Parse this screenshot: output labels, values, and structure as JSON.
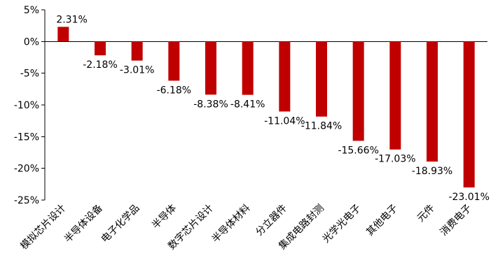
{
  "chart_data": {
    "type": "bar",
    "categories": [
      "模拟芯片设计",
      "半导体设备",
      "电子化学品",
      "半导体",
      "数字芯片设计",
      "半导体材料",
      "分立器件",
      "集成电路封测",
      "光学光电子",
      "其他电子",
      "元件",
      "消费电子"
    ],
    "values": [
      2.31,
      -2.18,
      -3.01,
      -6.18,
      -8.38,
      -8.41,
      -11.04,
      -11.84,
      -15.66,
      -17.03,
      -18.93,
      -23.01
    ],
    "data_labels": [
      "2.31%",
      "-2.18%",
      "-3.01%",
      "-6.18%",
      "-8.38%",
      "-8.41%",
      "-11.04%",
      "-11.84%",
      "-15.66%",
      "-17.03%",
      "-18.93%",
      "-23.01%"
    ],
    "title": "",
    "xlabel": "",
    "ylabel": "",
    "ylim": [
      -25,
      5
    ],
    "yticks": [
      5,
      0,
      -5,
      -10,
      -15,
      -20,
      -25
    ],
    "ytick_labels": [
      "5%",
      "0%",
      "-5%",
      "-10%",
      "-15%",
      "-20%",
      "-25%"
    ],
    "grid": false,
    "bar_color": "#C00000"
  }
}
